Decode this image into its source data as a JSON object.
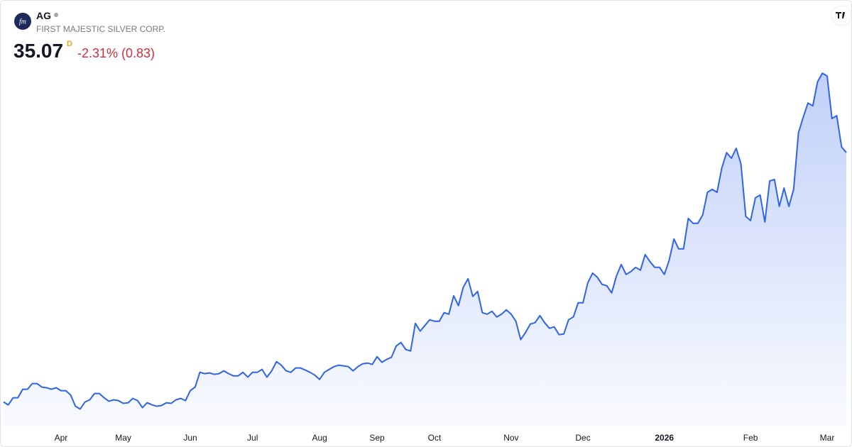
{
  "header": {
    "symbol": "AG",
    "company": "FIRST MAJESTIC SILVER CORP.",
    "price": "35.07",
    "interval": "D",
    "change": "-2.31% (0.83)"
  },
  "chart_data": {
    "type": "line",
    "series": [
      {
        "color": "#2f63e8",
        "values": [
          5.5,
          5.16,
          6.0,
          6.0,
          7.01,
          7.01,
          7.68,
          7.68,
          7.26,
          7.18,
          7.01,
          7.18,
          6.84,
          6.84,
          6.34,
          5.0,
          4.66,
          5.5,
          5.75,
          6.5,
          6.5,
          6.0,
          5.58,
          5.75,
          5.66,
          5.33,
          5.41,
          5.92,
          5.66,
          4.82,
          5.41,
          5.16,
          5.0,
          5.08,
          5.41,
          5.33,
          5.75,
          5.92,
          5.66,
          6.84,
          7.26,
          9.02,
          8.86,
          8.94,
          8.77,
          8.86,
          9.19,
          8.86,
          8.6,
          8.6,
          9.02,
          8.44,
          9.02,
          9.02,
          9.36,
          8.44,
          9.19,
          10.28,
          9.86,
          9.19,
          9.02,
          9.53,
          9.53,
          9.28,
          9.02,
          8.68,
          8.18,
          9.02,
          9.36,
          9.69,
          9.86,
          9.78,
          9.69,
          9.19,
          9.69,
          10.03,
          10.11,
          9.95,
          10.87,
          10.2,
          10.54,
          10.79,
          12.13,
          12.55,
          11.72,
          11.54,
          14.82,
          13.9,
          14.57,
          15.24,
          15.07,
          15.07,
          16.08,
          15.91,
          18.09,
          16.92,
          19.1,
          20.11,
          18.01,
          18.6,
          16.08,
          15.91,
          16.25,
          15.58,
          15.91,
          16.42,
          15.91,
          15.07,
          12.89,
          13.73,
          14.74,
          14.9,
          15.74,
          14.9,
          14.23,
          14.4,
          13.48,
          13.56,
          15.24,
          15.58,
          17.26,
          17.26,
          19.61,
          20.78,
          20.28,
          19.44,
          19.27,
          18.43,
          20.45,
          21.79,
          20.62,
          20.95,
          21.46,
          21.12,
          22.97,
          22.13,
          21.46,
          21.46,
          20.62,
          22.3,
          24.82,
          23.64,
          23.64,
          27.25,
          26.67,
          26.67,
          27.67,
          30.36,
          30.7,
          30.36,
          33.22,
          35.06,
          34.39,
          35.57,
          33.72,
          27.5,
          27.0,
          29.69,
          30.04,
          26.83,
          31.7,
          31.87,
          28.68,
          30.86,
          28.68,
          30.7,
          37.42,
          39.26,
          40.94,
          40.6,
          43.46,
          44.47,
          44.14,
          39.1,
          39.44,
          35.74,
          35.07
        ]
      }
    ],
    "xticks": [
      {
        "value": 12,
        "label": "Apr"
      },
      {
        "value": 25,
        "label": "May"
      },
      {
        "value": 39,
        "label": "Jun"
      },
      {
        "value": 52,
        "label": "Jul"
      },
      {
        "value": 66,
        "label": "Aug"
      },
      {
        "value": 78,
        "label": "Sep"
      },
      {
        "value": 90,
        "label": "Oct"
      },
      {
        "value": 106,
        "label": "Nov"
      },
      {
        "value": 121,
        "label": "Dec"
      },
      {
        "value": 138,
        "label": "2026"
      },
      {
        "value": 156,
        "label": "Feb"
      },
      {
        "value": 172,
        "label": "Mar"
      }
    ],
    "ylim": [
      2.6,
      46
    ]
  }
}
